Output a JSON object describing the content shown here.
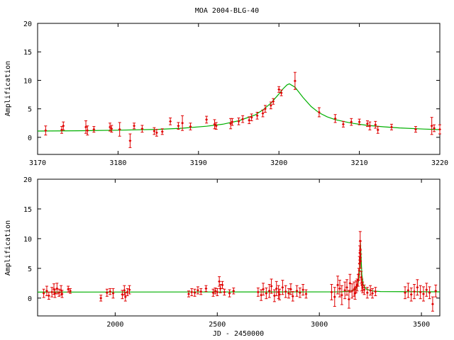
{
  "title": "MOA 2004-BLG-40",
  "colors": {
    "data": "#e00000",
    "model": "#00b000",
    "axes": "#000000",
    "background": "#ffffff"
  },
  "chart_data": [
    {
      "type": "scatter",
      "panel": "top",
      "ylabel": "Amplification",
      "xlabel": "",
      "xlim": [
        3170,
        3220
      ],
      "ylim": [
        -3,
        20
      ],
      "xticks": [
        "3170",
        "3180",
        "3190",
        "3200",
        "3210",
        "3220"
      ],
      "yticks": [
        "0",
        "5",
        "10",
        "15",
        "20"
      ],
      "grid": false,
      "series": [
        {
          "style": "points-with-errorbars",
          "x": [
            3171.0,
            3173.0,
            3173.2,
            3176.0,
            3176.2,
            3177.0,
            3179.0,
            3179.2,
            3180.2,
            3181.5,
            3182.0,
            3183.0,
            3184.5,
            3184.8,
            3185.5,
            3186.5,
            3187.5,
            3188.0,
            3189.0,
            3191.0,
            3192.0,
            3192.2,
            3194.0,
            3194.2,
            3195.0,
            3195.5,
            3196.3,
            3196.6,
            3197.3,
            3198.0,
            3198.3,
            3199.0,
            3199.3,
            3200.0,
            3200.3,
            3202.0,
            3205.0,
            3207.0,
            3208.0,
            3209.0,
            3210.0,
            3211.0,
            3211.3,
            3212.0,
            3212.3,
            3214.0,
            3217.0,
            3219.0,
            3219.3,
            3220.0
          ],
          "y": [
            1.2,
            1.3,
            2.0,
            1.8,
            1.2,
            1.4,
            1.8,
            1.5,
            1.4,
            -0.6,
            2.0,
            1.5,
            1.1,
            0.8,
            1.0,
            2.8,
            2.0,
            2.5,
            1.9,
            3.1,
            2.3,
            2.0,
            2.4,
            2.7,
            2.8,
            3.2,
            3.0,
            3.5,
            3.8,
            4.2,
            5.0,
            5.6,
            6.3,
            8.4,
            7.8,
            9.9,
            4.4,
            3.3,
            2.3,
            2.7,
            2.7,
            2.4,
            2.0,
            2.2,
            1.3,
            1.8,
            1.4,
            2.0,
            1.6,
            1.4
          ],
          "yerr": [
            0.8,
            0.6,
            0.7,
            1.1,
            0.8,
            0.5,
            0.7,
            0.6,
            1.2,
            1.2,
            0.5,
            0.6,
            0.6,
            0.6,
            0.5,
            0.6,
            0.6,
            1.3,
            0.6,
            0.6,
            0.8,
            0.6,
            0.9,
            0.6,
            0.6,
            0.6,
            0.6,
            0.6,
            0.6,
            0.6,
            0.6,
            0.6,
            0.5,
            0.5,
            0.5,
            1.5,
            0.8,
            0.7,
            0.5,
            0.6,
            0.5,
            0.5,
            0.7,
            0.6,
            0.6,
            0.5,
            0.5,
            1.5,
            0.6,
            0.8
          ]
        },
        {
          "style": "line",
          "x": [
            3170,
            3175,
            3180,
            3185,
            3188,
            3191,
            3193,
            3195,
            3197,
            3198,
            3199,
            3200,
            3200.5,
            3201,
            3201.3,
            3202,
            3203,
            3204,
            3205,
            3206,
            3207,
            3209,
            3211,
            3213,
            3215,
            3218,
            3220
          ],
          "y": [
            1.1,
            1.15,
            1.25,
            1.4,
            1.6,
            1.95,
            2.3,
            2.9,
            3.9,
            4.8,
            6.0,
            7.6,
            8.5,
            9.2,
            9.4,
            8.8,
            7.0,
            5.4,
            4.3,
            3.6,
            3.1,
            2.5,
            2.1,
            1.85,
            1.65,
            1.45,
            1.35
          ]
        }
      ]
    },
    {
      "type": "scatter",
      "panel": "bottom",
      "ylabel": "Amplification",
      "xlabel": "JD - 2450000",
      "xlim": [
        1620,
        3590
      ],
      "ylim": [
        -3,
        20
      ],
      "xticks": [
        "2000",
        "2500",
        "3000",
        "3500"
      ],
      "yticks": [
        "0",
        "5",
        "10",
        "15",
        "20"
      ],
      "grid": false,
      "series": [
        {
          "style": "points-with-errorbars",
          "x": [
            1650,
            1665,
            1675,
            1690,
            1700,
            1705,
            1715,
            1725,
            1735,
            1740,
            1770,
            1780,
            1930,
            1960,
            1975,
            1990,
            2035,
            2045,
            2050,
            2060,
            2070,
            2360,
            2375,
            2390,
            2405,
            2420,
            2445,
            2480,
            2490,
            2500,
            2510,
            2515,
            2525,
            2535,
            2560,
            2580,
            2700,
            2715,
            2725,
            2740,
            2755,
            2765,
            2780,
            2790,
            2800,
            2805,
            2820,
            2835,
            2850,
            2860,
            2870,
            2890,
            2905,
            2920,
            2935,
            3060,
            3075,
            3090,
            3100,
            3110,
            3125,
            3135,
            3145,
            3150,
            3160,
            3170,
            3175,
            3180,
            3185,
            3190,
            3193,
            3196,
            3198,
            3200,
            3201,
            3202,
            3205,
            3208,
            3212,
            3220,
            3235,
            3250,
            3260,
            3275,
            3420,
            3435,
            3450,
            3465,
            3480,
            3495,
            3510,
            3525,
            3540,
            3555,
            3570
          ],
          "y": [
            0.8,
            1.2,
            0.4,
            1.0,
            1.5,
            0.8,
            1.6,
            0.9,
            1.3,
            0.7,
            1.5,
            1.2,
            0.0,
            0.9,
            1.1,
            0.8,
            0.6,
            1.3,
            0.2,
            1.0,
            1.4,
            0.7,
            1.0,
            0.9,
            1.3,
            1.1,
            1.6,
            0.9,
            1.2,
            1.0,
            2.8,
            1.6,
            2.2,
            1.0,
            0.8,
            1.2,
            1.0,
            0.5,
            1.5,
            0.8,
            1.2,
            2.0,
            0.4,
            1.6,
            1.0,
            0.6,
            1.8,
            1.1,
            0.8,
            1.5,
            0.3,
            1.2,
            0.9,
            1.4,
            0.7,
            1.0,
            0.2,
            2.2,
            1.6,
            0.5,
            1.3,
            1.8,
            -0.2,
            2.5,
            1.2,
            1.5,
            0.8,
            1.9,
            2.2,
            3.0,
            4.0,
            5.8,
            7.6,
            9.6,
            8.2,
            6.2,
            3.5,
            2.2,
            1.8,
            1.4,
            0.9,
            1.3,
            0.8,
            1.1,
            0.9,
            1.3,
            0.6,
            1.1,
            1.8,
            1.0,
            0.7,
            1.4,
            0.9,
            -1.0,
            1.2
          ],
          "yerr": [
            0.7,
            0.8,
            0.6,
            0.8,
            0.9,
            0.7,
            0.9,
            0.6,
            0.8,
            0.6,
            0.5,
            0.4,
            0.5,
            0.6,
            0.5,
            0.8,
            0.7,
            0.8,
            0.7,
            0.6,
            0.7,
            0.5,
            0.6,
            0.6,
            0.6,
            0.5,
            0.5,
            0.6,
            0.5,
            0.6,
            0.8,
            0.7,
            0.6,
            0.5,
            0.6,
            0.5,
            0.7,
            0.9,
            1.0,
            0.9,
            1.1,
            1.2,
            1.0,
            1.2,
            1.1,
            0.9,
            1.2,
            1.0,
            0.8,
            0.9,
            0.8,
            0.9,
            0.8,
            0.9,
            0.7,
            1.3,
            1.6,
            1.5,
            1.4,
            1.6,
            1.4,
            1.3,
            1.5,
            1.5,
            1.2,
            1.2,
            1.0,
            1.0,
            1.0,
            1.0,
            1.0,
            1.2,
            1.2,
            1.6,
            1.4,
            1.2,
            1.0,
            1.0,
            0.9,
            0.8,
            0.9,
            0.8,
            0.8,
            0.7,
            1.0,
            1.2,
            1.1,
            1.2,
            1.3,
            1.1,
            1.2,
            1.1,
            1.0,
            1.2,
            1.0
          ]
        },
        {
          "style": "line",
          "x": [
            1620,
            3100,
            3150,
            3175,
            3188,
            3195,
            3199,
            3201,
            3203,
            3208,
            3215,
            3230,
            3260,
            3300,
            3590
          ],
          "y": [
            1.0,
            1.05,
            1.15,
            1.4,
            2.0,
            3.5,
            6.5,
            9.4,
            8.0,
            4.0,
            2.2,
            1.5,
            1.2,
            1.1,
            1.05
          ]
        }
      ]
    }
  ]
}
